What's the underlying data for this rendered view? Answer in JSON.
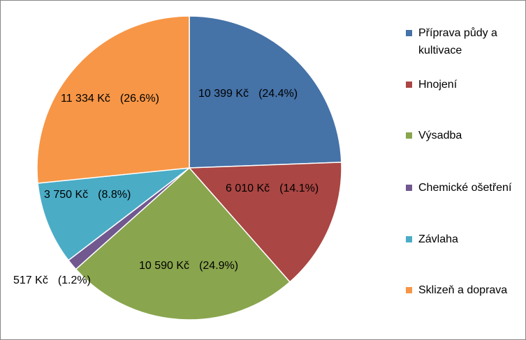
{
  "chart_data": {
    "type": "pie",
    "currency": "Kč",
    "slices": [
      {
        "label": "Příprava půdy a kultivace",
        "value": 10399,
        "value_text": "10 399 Kč",
        "percent_text": "(24.4%)",
        "color": "#4572A7"
      },
      {
        "label": "Hnojení",
        "value": 6010,
        "value_text": "6 010 Kč",
        "percent_text": "(14.1%)",
        "color": "#AA4643"
      },
      {
        "label": "Výsadba",
        "value": 10590,
        "value_text": "10 590 Kč",
        "percent_text": "(24.9%)",
        "color": "#89A54E"
      },
      {
        "label": "Chemické ošetření",
        "value": 517,
        "value_text": "517 Kč",
        "percent_text": "(1.2%)",
        "color": "#71588F"
      },
      {
        "label": "Závlaha",
        "value": 3750,
        "value_text": "3 750 Kč",
        "percent_text": "(8.8%)",
        "color": "#4BACC6"
      },
      {
        "label": "Sklizeň a doprava",
        "value": 11334,
        "value_text": "11 334 Kč",
        "percent_text": "(26.6%)",
        "color": "#F79646"
      }
    ],
    "legend_position": "right"
  }
}
